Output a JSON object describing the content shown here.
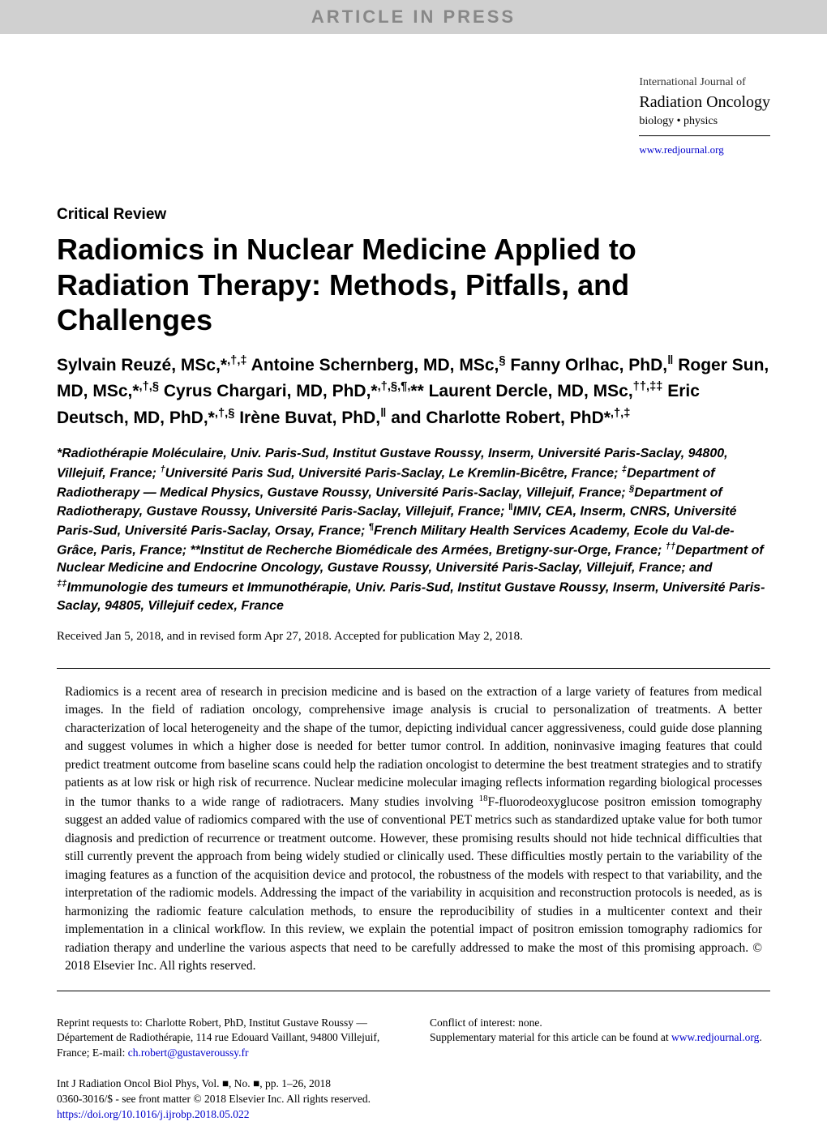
{
  "header": {
    "banner": "ARTICLE IN PRESS",
    "journal_line1": "International Journal of",
    "journal_line2": "Radiation Oncology",
    "journal_line3": "biology • physics",
    "url": "www.redjournal.org"
  },
  "article": {
    "section": "Critical Review",
    "title": "Radiomics in Nuclear Medicine Applied to Radiation Therapy: Methods, Pitfalls, and Challenges",
    "authors_html": "Sylvain Reuzé, MSc,*<sup>,†,‡</sup> Antoine Schernberg, MD, MSc,<sup>§</sup> Fanny Orlhac, PhD,<sup>‖</sup> Roger Sun, MD, MSc,*<sup>,†,§</sup> Cyrus Chargari, MD, PhD,*<sup>,†,§,¶,</sup>** Laurent Dercle, MD, MSc,<sup>††,‡‡</sup> Eric Deutsch, MD, PhD,*<sup>,†,§</sup> Irène Buvat, PhD,<sup>‖</sup> and Charlotte Robert, PhD*<sup>,†,‡</sup>",
    "affiliations_html": "*Radiothérapie Moléculaire, Univ. Paris-Sud, Institut Gustave Roussy, Inserm, Université Paris-Saclay, 94800, Villejuif, France; <sup>†</sup>Université Paris Sud, Université Paris-Saclay, Le Kremlin-Bicêtre, France; <sup>‡</sup>Department of Radiotherapy — Medical Physics, Gustave Roussy, Université Paris-Saclay, Villejuif, France; <sup>§</sup>Department of Radiotherapy, Gustave Roussy, Université Paris-Saclay, Villejuif, France; <sup>‖</sup>IMIV, CEA, Inserm, CNRS, Université Paris-Sud, Université Paris-Saclay, Orsay, France; <sup>¶</sup>French Military Health Services Academy, Ecole du Val-de-Grâce, Paris, France; **Institut de Recherche Biomédicale des Armées, Bretigny-sur-Orge, France; <sup>††</sup>Department of Nuclear Medicine and Endocrine Oncology, Gustave Roussy, Université Paris-Saclay, Villejuif, France; and <sup>‡‡</sup>Immunologie des tumeurs et Immunothérapie, Univ. Paris-Sud, Institut Gustave Roussy, Inserm, Université Paris-Saclay, 94805, Villejuif cedex, France",
    "received": "Received Jan 5, 2018, and in revised form Apr 27, 2018. Accepted for publication May 2, 2018.",
    "abstract_html": "Radiomics is a recent area of research in precision medicine and is based on the extraction of a large variety of features from medical images. In the field of radiation oncology, comprehensive image analysis is crucial to personalization of treatments. A better characterization of local heterogeneity and the shape of the tumor, depicting individual cancer aggressiveness, could guide dose planning and suggest volumes in which a higher dose is needed for better tumor control. In addition, noninvasive imaging features that could predict treatment outcome from baseline scans could help the radiation oncologist to determine the best treatment strategies and to stratify patients as at low risk or high risk of recurrence. Nuclear medicine molecular imaging reflects information regarding biological processes in the tumor thanks to a wide range of radiotracers. Many studies involving <sup>18</sup>F-fluorodeoxyglucose positron emission tomography suggest an added value of radiomics compared with the use of conventional PET metrics such as standardized uptake value for both tumor diagnosis and prediction of recurrence or treatment outcome. However, these promising results should not hide technical difficulties that still currently prevent the approach from being widely studied or clinically used. These difficulties mostly pertain to the variability of the imaging features as a function of the acquisition device and protocol, the robustness of the models with respect to that variability, and the interpretation of the radiomic models. Addressing the impact of the variability in acquisition and reconstruction protocols is needed, as is harmonizing the radiomic feature calculation methods, to ensure the reproducibility of studies in a multicenter context and their implementation in a clinical workflow. In this review, we explain the potential impact of positron emission tomography radiomics for radiation therapy and underline the various aspects that need to be carefully addressed to make the most of this promising approach. © 2018 Elsevier Inc. All rights reserved."
  },
  "footer": {
    "reprint": "Reprint requests to: Charlotte Robert, PhD, Institut Gustave Roussy — Département de Radiothérapie, 114 rue Edouard Vaillant, 94800 Villejuif, France; E-mail: ",
    "email": "ch.robert@gustaveroussy.fr",
    "citation": "Int J Radiation Oncol Biol Phys, Vol. ■, No. ■, pp. 1–26, 2018",
    "copyright": "0360-3016/$ - see front matter © 2018 Elsevier Inc. All rights reserved.",
    "doi": "https://doi.org/10.1016/j.ijrobp.2018.05.022",
    "conflict": "Conflict of interest: none.",
    "supplementary": "Supplementary material for this article can be found at ",
    "supp_url": "www.redjournal.org"
  },
  "colors": {
    "banner_bg": "#d0d0d0",
    "banner_text": "#888888",
    "link": "#0000cc",
    "text": "#000000"
  }
}
